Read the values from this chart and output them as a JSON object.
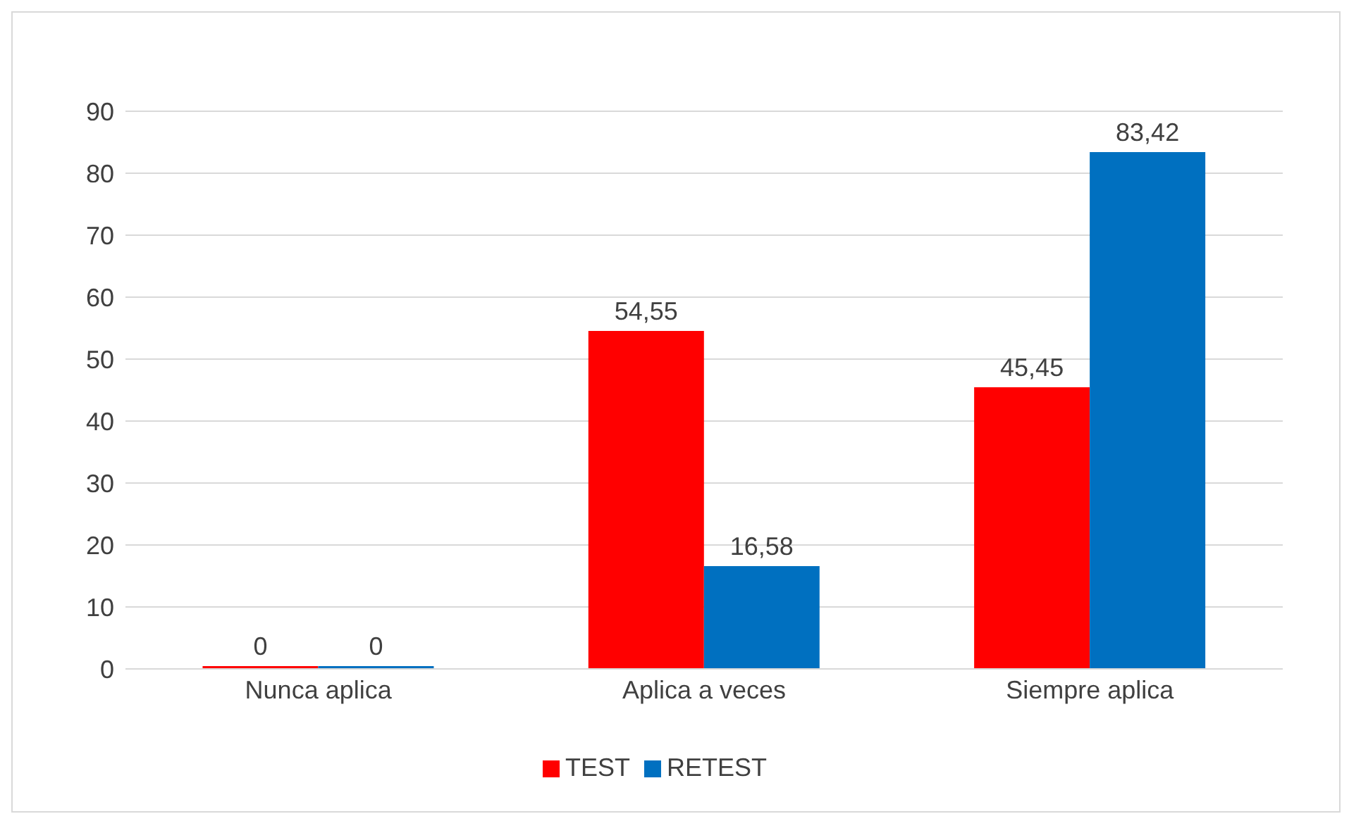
{
  "chart_data": {
    "type": "bar",
    "categories": [
      "Nunca aplica",
      "Aplica a veces",
      "Siempre aplica"
    ],
    "series": [
      {
        "name": "TEST",
        "color": "#ff0000",
        "values": [
          0,
          54.55,
          45.45
        ],
        "value_labels": [
          "0",
          "54,55",
          "45,45"
        ]
      },
      {
        "name": "RETEST",
        "color": "#0070c0",
        "values": [
          0,
          16.58,
          83.42
        ],
        "value_labels": [
          "0",
          "16,58",
          "83,42"
        ]
      }
    ],
    "ylim": [
      0,
      90
    ],
    "yticks": [
      0,
      10,
      20,
      30,
      40,
      50,
      60,
      70,
      80,
      90
    ],
    "grid": "y",
    "legend": "bottom"
  }
}
